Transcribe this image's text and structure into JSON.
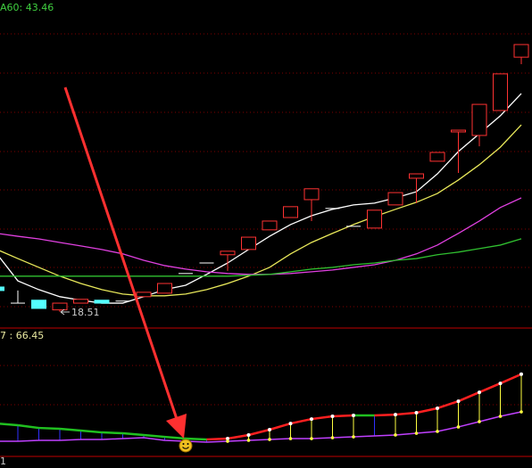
{
  "chart_data": [
    {
      "type": "candlestick",
      "ylim": [
        13.0,
        124.9
      ],
      "ma_label": "A60: 43.46",
      "low_label": "18.51",
      "open": [
        27.0,
        21.5,
        22.5,
        19.2,
        21.5,
        22.5,
        22.2,
        23.7,
        24.9,
        31.6,
        35.2,
        38.0,
        39.8,
        46.5,
        50.7,
        56.8,
        53.8,
        47.7,
        47.1,
        55.0,
        64.1,
        69.9,
        79.9,
        78.7,
        87.2,
        105.4
      ],
      "high": [
        27.0,
        25.8,
        22.5,
        21.5,
        22.8,
        22.5,
        22.2,
        25.2,
        28.2,
        31.6,
        35.2,
        39.2,
        44.0,
        49.5,
        54.4,
        60.5,
        53.8,
        47.7,
        53.2,
        59.2,
        65.6,
        72.9,
        80.5,
        89.3,
        99.7,
        109.7
      ],
      "low": [
        25.8,
        21.5,
        19.7,
        18.5,
        21.5,
        21.5,
        22.2,
        23.7,
        24.9,
        31.6,
        35.2,
        32.5,
        39.8,
        46.5,
        50.7,
        49.5,
        53.8,
        47.7,
        47.1,
        55.0,
        55.6,
        69.9,
        65.9,
        75.0,
        87.2,
        103.0
      ],
      "close": [
        25.8,
        21.5,
        19.7,
        21.5,
        22.8,
        21.5,
        22.2,
        25.2,
        28.2,
        31.6,
        35.2,
        39.2,
        44.0,
        49.5,
        54.4,
        60.5,
        53.8,
        47.7,
        53.2,
        59.2,
        65.6,
        72.9,
        80.5,
        89.3,
        99.7,
        109.7
      ],
      "colors": {
        "up": "#ff3232",
        "down": "#54ffff",
        "flat": "#ffffff"
      },
      "series": [
        {
          "color": "#ffffff",
          "values": [
            38.3,
            29.1,
            26.1,
            23.7,
            22.5,
            21.5,
            21.5,
            23.7,
            26.1,
            27.6,
            31.3,
            35.2,
            39.8,
            44.3,
            48.3,
            51.3,
            53.5,
            55.0,
            55.6,
            57.4,
            59.5,
            65.6,
            73.2,
            79.3,
            85.4,
            93.0
          ]
        },
        {
          "color": "#e8e85a",
          "values": [
            39.8,
            36.7,
            33.7,
            30.7,
            28.2,
            26.1,
            24.6,
            24.0,
            24.0,
            24.6,
            26.1,
            28.2,
            30.7,
            33.7,
            38.3,
            42.2,
            45.3,
            48.3,
            51.0,
            53.5,
            55.9,
            58.9,
            63.5,
            68.7,
            74.7,
            82.3
          ]
        },
        {
          "color": "#e040e0",
          "values": [
            45.3,
            44.3,
            43.4,
            42.2,
            41.0,
            39.8,
            38.3,
            36.1,
            34.3,
            33.1,
            32.2,
            31.6,
            31.3,
            31.3,
            31.6,
            32.2,
            32.8,
            33.7,
            34.6,
            36.1,
            38.3,
            41.3,
            45.3,
            49.5,
            54.1,
            57.4
          ]
        },
        {
          "color": "#30c030",
          "values": [
            30.7,
            30.7,
            30.7,
            30.7,
            30.7,
            30.7,
            30.7,
            30.7,
            30.7,
            30.7,
            30.7,
            30.7,
            31.0,
            31.3,
            32.2,
            33.1,
            33.7,
            34.6,
            35.2,
            36.1,
            36.7,
            38.0,
            38.9,
            40.1,
            41.3,
            43.46
          ]
        }
      ]
    },
    {
      "type": "line",
      "ylim": [
        0,
        103.7
      ],
      "label": "7 : 66.45",
      "footer_label": "1",
      "colors": {
        "up": "#ff2020",
        "down": "#20c020",
        "up_bar": "#ffff40",
        "down_bar": "#3030ff",
        "dot": "#ffffff",
        "lower": "#c040ff"
      },
      "series": [
        {
          "values": [
            26.6,
            25.2,
            23.0,
            22.3,
            20.9,
            19.4,
            18.7,
            17.3,
            15.8,
            14.4,
            13.7,
            14.4,
            17.3,
            21.6,
            26.6,
            30.2,
            32.4,
            33.1,
            33.1,
            33.8,
            35.3,
            38.9,
            44.6,
            51.8,
            59.0,
            66.45
          ]
        },
        {
          "values": [
            12.2,
            12.2,
            13.0,
            13.0,
            13.7,
            13.7,
            14.4,
            15.1,
            13.0,
            12.2,
            11.5,
            12.2,
            13.0,
            13.7,
            14.4,
            14.4,
            15.1,
            15.8,
            16.6,
            17.3,
            18.7,
            20.2,
            23.8,
            28.1,
            32.4,
            36.0
          ]
        }
      ]
    }
  ]
}
